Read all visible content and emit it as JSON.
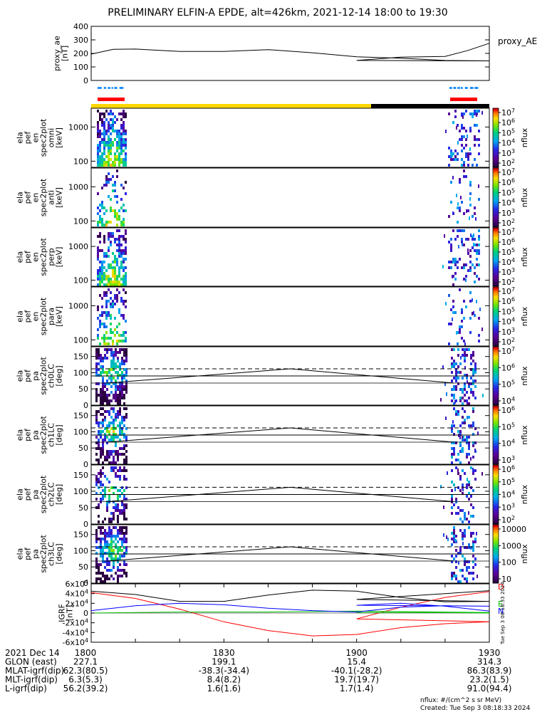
{
  "title": "PRELIMINARY ELFIN-A EPDE, alt=426km, 2021-12-14 18:00 to 19:30",
  "chart_data": [
    {
      "type": "line",
      "name": "proxy_ae",
      "ylabel_lines": [
        "proxy_ae",
        "[nT]"
      ],
      "legend": "proxy_AE",
      "ylim": [
        0,
        400
      ],
      "yticks": [
        "0",
        "100",
        "200",
        "300",
        "400"
      ],
      "x": [
        1800,
        1805,
        1810,
        1820,
        1830,
        1840,
        1850,
        1860,
        1870,
        1880,
        1890,
        1900,
        1910,
        1920,
        1925,
        1930
      ],
      "values": [
        195,
        230,
        232,
        215,
        215,
        228,
        205,
        175,
        165,
        148,
        145,
        148,
        172,
        178,
        220,
        275
      ]
    },
    {
      "type": "heatmap",
      "ylabel_lines": [
        "ela",
        "pef",
        "en",
        "spec2plot",
        "omni",
        "[keV]"
      ],
      "yticks": [
        "100",
        "1000"
      ],
      "colorbar_ticks": [
        "10^2",
        "10^3",
        "10^4",
        "10^5",
        "10^6",
        "10^7"
      ],
      "colorbar_label": "nflux"
    },
    {
      "type": "heatmap",
      "ylabel_lines": [
        "ela",
        "pef",
        "en",
        "spec2plot",
        "anti",
        "[keV]"
      ],
      "yticks": [
        "100",
        "1000"
      ],
      "colorbar_ticks": [
        "10^2",
        "10^3",
        "10^4",
        "10^5",
        "10^6",
        "10^7"
      ],
      "colorbar_label": "nflux"
    },
    {
      "type": "heatmap",
      "ylabel_lines": [
        "ela",
        "pef",
        "en",
        "spec2plot",
        "perp",
        "[keV]"
      ],
      "yticks": [
        "100",
        "1000"
      ],
      "colorbar_ticks": [
        "10^2",
        "10^3",
        "10^4",
        "10^5",
        "10^6",
        "10^7"
      ],
      "colorbar_label": "nflux"
    },
    {
      "type": "heatmap",
      "ylabel_lines": [
        "ela",
        "pef",
        "en",
        "spec2plot",
        "para",
        "[keV]"
      ],
      "yticks": [
        "100",
        "1000"
      ],
      "colorbar_ticks": [
        "10^2",
        "10^3",
        "10^4",
        "10^5",
        "10^6",
        "10^7"
      ],
      "colorbar_label": "nflux"
    },
    {
      "type": "heatmap",
      "ylabel_lines": [
        "ela",
        "pef",
        "pa",
        "spec2plot",
        "ch0LC",
        "[deg]"
      ],
      "yticks": [
        "0",
        "50",
        "100",
        "150"
      ],
      "ylim": [
        0,
        180
      ],
      "colorbar_ticks": [
        "10^4",
        "10^5",
        "10^6",
        "10^7"
      ],
      "colorbar_label": "nflux"
    },
    {
      "type": "heatmap",
      "ylabel_lines": [
        "ela",
        "pef",
        "pa",
        "spec2plot",
        "ch1LC",
        "[deg]"
      ],
      "yticks": [
        "0",
        "50",
        "100",
        "150"
      ],
      "ylim": [
        0,
        180
      ],
      "colorbar_ticks": [
        "10^3",
        "10^4",
        "10^5",
        "10^6"
      ],
      "colorbar_label": "nflux"
    },
    {
      "type": "heatmap",
      "ylabel_lines": [
        "ela",
        "pef",
        "pa",
        "spec2plot",
        "ch2LC",
        "[deg]"
      ],
      "yticks": [
        "0",
        "50",
        "100",
        "150"
      ],
      "ylim": [
        0,
        180
      ],
      "colorbar_ticks": [
        "10^2",
        "10^3",
        "10^4",
        "10^5",
        "10^6"
      ],
      "colorbar_label": "nflux"
    },
    {
      "type": "heatmap",
      "ylabel_lines": [
        "ela",
        "pef",
        "pa",
        "spec2plot",
        "ch3LC",
        "[deg]"
      ],
      "yticks": [
        "0",
        "50",
        "100",
        "150"
      ],
      "ylim": [
        0,
        180
      ],
      "colorbar_ticks": [
        "10",
        "100",
        "1000",
        "10000"
      ],
      "colorbar_label": "nflux"
    },
    {
      "type": "line",
      "ylabel_lines": [
        "IGRF",
        "[nT]"
      ],
      "ylim": [
        -60000,
        60000
      ],
      "yticks": [
        "6x10^4",
        "4x10^4",
        "2x10^4",
        "0",
        "-2x10^4",
        "-4x10^4",
        "-6x10^4"
      ],
      "legend": [
        "D",
        "E",
        "N"
      ],
      "x": [
        1800,
        1810,
        1820,
        1830,
        1840,
        1850,
        1860,
        1870,
        1880,
        1890,
        1900,
        1910,
        1920,
        1930
      ],
      "series": [
        {
          "name": "D",
          "color": "#ff0000",
          "values": [
            42000,
            30000,
            8000,
            -18000,
            -36000,
            -47000,
            -44000,
            -30000,
            -22000,
            -18000,
            -12000,
            12000,
            32000,
            44000
          ]
        },
        {
          "name": "E",
          "color": "#00c000",
          "values": [
            0,
            1000,
            2000,
            2000,
            2000,
            3000,
            4000,
            3000,
            2000,
            1000,
            1000,
            1000,
            1000,
            0
          ]
        },
        {
          "name": "N",
          "color": "#0000ff",
          "values": [
            5000,
            15000,
            20000,
            17000,
            10000,
            5000,
            2000,
            12000,
            15000,
            14000,
            16000,
            20000,
            14000,
            4000
          ]
        },
        {
          "name": "total",
          "color": "#000000",
          "values": [
            45000,
            38000,
            24000,
            24000,
            37000,
            47000,
            45000,
            32000,
            23000,
            24000,
            28000,
            34000,
            40000,
            46000
          ]
        }
      ]
    }
  ],
  "colorbar_exponent_base": "10",
  "x_tick_labels": [
    "1800",
    "1830",
    "1900",
    "1930"
  ],
  "info_rows": [
    {
      "label": "2021 Dec 14",
      "values": [
        "1800",
        "1830",
        "1900",
        "1930"
      ]
    },
    {
      "label": "GLON (east)",
      "values": [
        "227.1",
        "199.1",
        "15.4",
        "314.3"
      ]
    },
    {
      "label": "MLAT-igrf(dip)",
      "values": [
        "62.3(80.5)",
        "-38.3(-34.4)",
        "-40.1(-28.2)",
        "86.3(83.9)"
      ]
    },
    {
      "label": "MLT-igrf(dip)",
      "values": [
        "6.3(5.3)",
        "8.4(8.2)",
        "19.7(19.7)",
        "23.2(1.5)"
      ]
    },
    {
      "label": "L-igrf(dip)",
      "values": [
        "56.2(39.2)",
        "1.6(1.6)",
        "1.7(1.4)",
        "91.0(94.4)"
      ]
    }
  ],
  "footer": {
    "units": "nflux: #/(cm^2 s sr MeV)",
    "created": "Created: Tue Sep  3 08:18:33 2024",
    "side_stamp": "Tue Sep  3 08:18:33 2024"
  }
}
